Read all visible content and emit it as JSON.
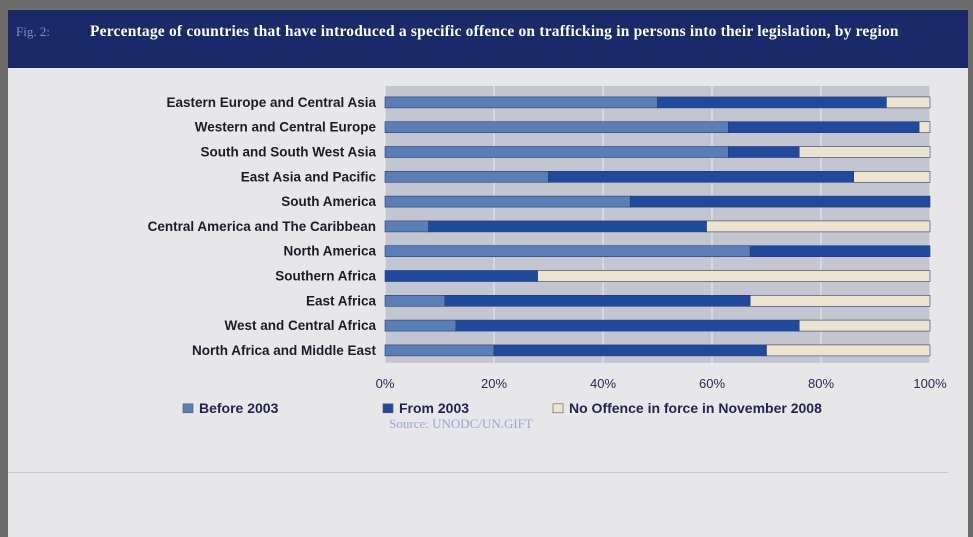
{
  "figure": {
    "label": "Fig. 2:",
    "title": "Percentage of countries that have introduced a specific offence on trafficking in persons into their legislation, by region",
    "source": "Source: UNODC/UN.GIFT"
  },
  "colors": {
    "header_bg": "#1a2a68",
    "before_2003": "#5a7fb8",
    "from_2003": "#1f4a9e",
    "no_offence": "#ece4cf"
  },
  "chart_data": {
    "type": "bar",
    "orientation": "horizontal",
    "stacked": true,
    "categories": [
      "Eastern Europe and Central Asia",
      "Western and Central Europe",
      "South and South West Asia",
      "East Asia and Pacific",
      "South America",
      "Central America and The Caribbean",
      "North America",
      "Southern Africa",
      "East Africa",
      "West and Central Africa",
      "North Africa and Middle East"
    ],
    "series": [
      {
        "name": "Before 2003",
        "color": "#5a7fb8",
        "values": [
          50,
          63,
          63,
          30,
          45,
          8,
          67,
          0,
          11,
          13,
          20
        ]
      },
      {
        "name": "From 2003",
        "color": "#1f4a9e",
        "values": [
          42,
          35,
          13,
          56,
          55,
          51,
          33,
          28,
          56,
          63,
          50
        ]
      },
      {
        "name": "No Offence in force in November 2008",
        "color": "#ece4cf",
        "values": [
          8,
          2,
          24,
          14,
          0,
          41,
          0,
          72,
          33,
          24,
          30
        ]
      }
    ],
    "xlim": [
      0,
      100
    ],
    "xticks": [
      "0%",
      "20%",
      "40%",
      "60%",
      "80%",
      "100%"
    ],
    "grid": true,
    "legend": "bottom"
  }
}
